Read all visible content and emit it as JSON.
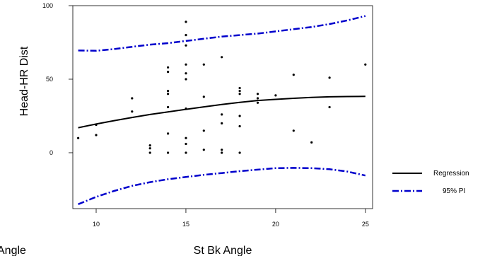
{
  "chart_data": {
    "type": "scatter",
    "xlabel": "St Bk Angle",
    "ylabel": "Head-HR Dist",
    "clipped_label": "Angle",
    "xlim": [
      8.7,
      25.4
    ],
    "ylim": [
      -38,
      100
    ],
    "x_ticks": [
      10,
      15,
      20,
      25
    ],
    "y_ticks": [
      0,
      50,
      100
    ],
    "grid": false,
    "legend_position": "right",
    "points": [
      [
        9,
        10
      ],
      [
        10,
        19
      ],
      [
        10,
        12
      ],
      [
        12,
        37
      ],
      [
        12,
        28
      ],
      [
        13,
        5
      ],
      [
        13,
        3
      ],
      [
        13,
        0
      ],
      [
        14,
        58
      ],
      [
        14,
        55
      ],
      [
        14,
        42
      ],
      [
        14,
        40
      ],
      [
        14,
        31
      ],
      [
        14,
        13
      ],
      [
        14,
        0
      ],
      [
        15,
        89
      ],
      [
        15,
        80
      ],
      [
        15,
        73
      ],
      [
        15,
        60
      ],
      [
        15,
        54
      ],
      [
        15,
        50
      ],
      [
        15,
        30
      ],
      [
        15,
        10
      ],
      [
        15,
        6
      ],
      [
        15,
        0
      ],
      [
        16,
        60
      ],
      [
        16,
        38
      ],
      [
        16,
        15
      ],
      [
        16,
        2
      ],
      [
        17,
        65
      ],
      [
        17,
        26
      ],
      [
        17,
        20
      ],
      [
        17,
        2
      ],
      [
        17,
        0
      ],
      [
        18,
        44
      ],
      [
        18,
        42
      ],
      [
        18,
        40
      ],
      [
        18,
        25
      ],
      [
        18,
        18
      ],
      [
        18,
        0
      ],
      [
        19,
        40
      ],
      [
        19,
        37
      ],
      [
        19,
        34
      ],
      [
        20,
        39
      ],
      [
        21,
        53
      ],
      [
        21,
        15
      ],
      [
        22,
        7
      ],
      [
        23,
        51
      ],
      [
        23,
        31
      ],
      [
        25,
        60
      ]
    ],
    "series": [
      {
        "name": "Regression",
        "color": "#000000",
        "style": "solid",
        "x": [
          9,
          10,
          11,
          12,
          13,
          14,
          15,
          16,
          17,
          18,
          19,
          20,
          21,
          22,
          23,
          24,
          25
        ],
        "y": [
          17,
          19.5,
          21.8,
          24,
          26,
          27.8,
          29.5,
          31.2,
          32.8,
          34.2,
          35.5,
          36.3,
          37,
          37.6,
          38,
          38.2,
          38.3
        ]
      },
      {
        "name": "95% PI",
        "color": "#0000cc",
        "style": "dashdot",
        "x": [
          9,
          10,
          11,
          12,
          13,
          14,
          15,
          16,
          17,
          18,
          19,
          20,
          21,
          22,
          23,
          24,
          25
        ],
        "y": [
          69.5,
          69.3,
          70.5,
          72,
          73.5,
          74.5,
          76,
          77.5,
          79,
          80,
          81,
          82.5,
          84,
          85.5,
          87.5,
          90,
          93
        ]
      },
      {
        "name": "95% PI lower",
        "color": "#0000cc",
        "style": "dashdot",
        "x": [
          9,
          10,
          11,
          12,
          13,
          14,
          15,
          16,
          17,
          18,
          19,
          20,
          21,
          22,
          23,
          24,
          25
        ],
        "y": [
          -35,
          -30,
          -26,
          -22.5,
          -20,
          -18,
          -16.5,
          -15,
          -13.8,
          -12.5,
          -11.5,
          -10.5,
          -10.3,
          -10.5,
          -11.2,
          -12.8,
          -15.5
        ]
      }
    ],
    "legend": [
      {
        "label": "Regression",
        "color": "#000000",
        "style": "solid"
      },
      {
        "label": "95% PI",
        "color": "#0000cc",
        "style": "dashdot"
      }
    ]
  }
}
